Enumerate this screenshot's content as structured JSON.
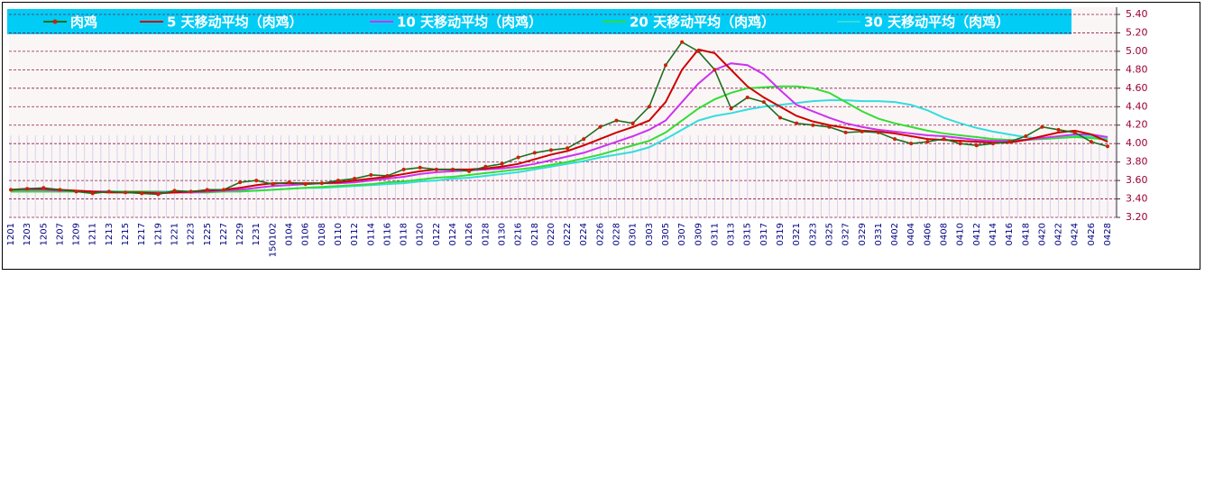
{
  "chart_data": {
    "type": "line",
    "categories": [
      "1201",
      "1203",
      "1205",
      "1207",
      "1209",
      "1211",
      "1213",
      "1215",
      "1217",
      "1219",
      "1221",
      "1223",
      "1225",
      "1227",
      "1229",
      "1231",
      "150102",
      "0104",
      "0106",
      "0108",
      "0110",
      "0112",
      "0114",
      "0116",
      "0118",
      "0120",
      "0122",
      "0124",
      "0126",
      "0128",
      "0130",
      "0216",
      "0218",
      "0220",
      "0222",
      "0224",
      "0226",
      "0228",
      "0301",
      "0303",
      "0305",
      "0307",
      "0309",
      "0311",
      "0313",
      "0315",
      "0317",
      "0319",
      "0321",
      "0323",
      "0325",
      "0327",
      "0329",
      "0331",
      "0402",
      "0404",
      "0406",
      "0408",
      "0410",
      "0412",
      "0414",
      "0416",
      "0418",
      "0420",
      "0422",
      "0424",
      "0426",
      "0428"
    ],
    "series": [
      {
        "name": "肉鸡",
        "color": "#1f6e1f",
        "values": [
          3.5,
          3.51,
          3.52,
          3.5,
          3.48,
          3.46,
          3.48,
          3.47,
          3.46,
          3.45,
          3.49,
          3.48,
          3.5,
          3.5,
          3.58,
          3.6,
          3.56,
          3.58,
          3.56,
          3.57,
          3.6,
          3.62,
          3.66,
          3.65,
          3.72,
          3.74,
          3.72,
          3.72,
          3.7,
          3.75,
          3.78,
          3.85,
          3.9,
          3.93,
          3.95,
          4.05,
          4.18,
          4.25,
          4.22,
          4.4,
          4.85,
          5.1,
          5.0,
          4.8,
          4.38,
          4.5,
          4.45,
          4.28,
          4.22,
          4.2,
          4.18,
          4.12,
          4.13,
          4.12,
          4.05,
          4.0,
          4.02,
          4.05,
          4.0,
          3.98,
          4.0,
          4.02,
          4.08,
          4.18,
          4.15,
          4.12,
          4.02,
          3.97
        ]
      },
      {
        "name": "5 天移动平均（肉鸡）",
        "color": "#cc0000",
        "values": [
          3.5,
          3.51,
          3.51,
          3.5,
          3.49,
          3.48,
          3.47,
          3.47,
          3.47,
          3.46,
          3.47,
          3.48,
          3.49,
          3.5,
          3.52,
          3.55,
          3.57,
          3.57,
          3.57,
          3.57,
          3.58,
          3.6,
          3.62,
          3.64,
          3.67,
          3.7,
          3.72,
          3.72,
          3.72,
          3.73,
          3.75,
          3.78,
          3.83,
          3.88,
          3.92,
          3.98,
          4.05,
          4.12,
          4.18,
          4.25,
          4.45,
          4.8,
          5.02,
          4.98,
          4.8,
          4.62,
          4.5,
          4.4,
          4.3,
          4.24,
          4.2,
          4.17,
          4.14,
          4.13,
          4.11,
          4.08,
          4.05,
          4.04,
          4.03,
          4.02,
          4.01,
          4.01,
          4.04,
          4.08,
          4.12,
          4.14,
          4.1,
          4.02
        ]
      },
      {
        "name": "10 天移动平均（肉鸡）",
        "color": "#cc33ee",
        "values": [
          3.5,
          3.5,
          3.5,
          3.49,
          3.49,
          3.48,
          3.48,
          3.47,
          3.47,
          3.47,
          3.47,
          3.47,
          3.48,
          3.49,
          3.5,
          3.52,
          3.54,
          3.55,
          3.56,
          3.57,
          3.57,
          3.58,
          3.6,
          3.62,
          3.64,
          3.67,
          3.69,
          3.7,
          3.71,
          3.72,
          3.73,
          3.75,
          3.78,
          3.82,
          3.86,
          3.9,
          3.96,
          4.02,
          4.08,
          4.15,
          4.25,
          4.45,
          4.65,
          4.8,
          4.87,
          4.85,
          4.75,
          4.58,
          4.42,
          4.35,
          4.28,
          4.22,
          4.18,
          4.15,
          4.13,
          4.11,
          4.09,
          4.08,
          4.06,
          4.04,
          4.03,
          4.03,
          4.04,
          4.06,
          4.08,
          4.1,
          4.1,
          4.07
        ]
      },
      {
        "name": "20 天移动平均（肉鸡）",
        "color": "#33dd33",
        "values": [
          3.48,
          3.48,
          3.48,
          3.48,
          3.48,
          3.48,
          3.48,
          3.48,
          3.48,
          3.48,
          3.47,
          3.47,
          3.47,
          3.48,
          3.48,
          3.49,
          3.5,
          3.51,
          3.52,
          3.53,
          3.54,
          3.55,
          3.56,
          3.58,
          3.59,
          3.61,
          3.63,
          3.64,
          3.66,
          3.68,
          3.7,
          3.72,
          3.74,
          3.77,
          3.8,
          3.84,
          3.88,
          3.93,
          3.98,
          4.03,
          4.12,
          4.25,
          4.38,
          4.48,
          4.55,
          4.6,
          4.61,
          4.62,
          4.62,
          4.6,
          4.55,
          4.45,
          4.35,
          4.27,
          4.22,
          4.18,
          4.14,
          4.11,
          4.09,
          4.07,
          4.05,
          4.04,
          4.04,
          4.05,
          4.06,
          4.07,
          4.06,
          4.04
        ]
      },
      {
        "name": "30 天移动平均（肉鸡）",
        "color": "#33dddd",
        "values": [
          3.48,
          3.48,
          3.48,
          3.48,
          3.48,
          3.48,
          3.48,
          3.48,
          3.48,
          3.48,
          3.48,
          3.48,
          3.48,
          3.48,
          3.49,
          3.49,
          3.5,
          3.51,
          3.52,
          3.52,
          3.53,
          3.54,
          3.55,
          3.56,
          3.57,
          3.59,
          3.6,
          3.62,
          3.63,
          3.65,
          3.67,
          3.69,
          3.72,
          3.75,
          3.78,
          3.81,
          3.85,
          3.88,
          3.91,
          3.96,
          4.05,
          4.15,
          4.25,
          4.3,
          4.33,
          4.37,
          4.4,
          4.42,
          4.44,
          4.46,
          4.47,
          4.47,
          4.46,
          4.46,
          4.45,
          4.42,
          4.36,
          4.28,
          4.22,
          4.17,
          4.13,
          4.1,
          4.07,
          4.05,
          4.06,
          4.08,
          4.08,
          4.05
        ]
      }
    ],
    "ylim": [
      3.2,
      5.4
    ],
    "yticks": [
      {
        "value": 3.2,
        "label": "3.20"
      },
      {
        "value": 3.4,
        "label": "3.40"
      },
      {
        "value": 3.6,
        "label": "3.60"
      },
      {
        "value": 3.8,
        "label": "3.80"
      },
      {
        "value": 4.0,
        "label": "4.00"
      },
      {
        "value": 4.2,
        "label": "4.20"
      },
      {
        "value": 4.4,
        "label": "4.40"
      },
      {
        "value": 4.6,
        "label": "4.60"
      },
      {
        "value": 4.8,
        "label": "4.80"
      },
      {
        "value": 5.0,
        "label": "5.00"
      },
      {
        "value": 5.2,
        "label": "5.20"
      },
      {
        "value": 5.4,
        "label": "5.40"
      }
    ],
    "grid": true,
    "legend": "top"
  }
}
